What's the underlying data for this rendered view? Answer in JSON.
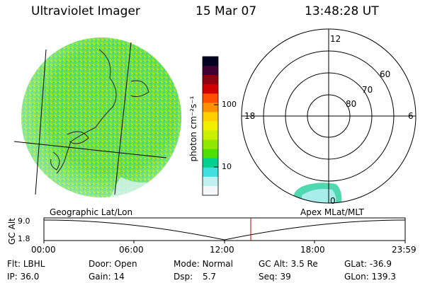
{
  "header": {
    "title": "Ultraviolet Imager",
    "date": "15 Mar 07",
    "time": "13:48:28 UT"
  },
  "colorbar": {
    "unit_label": "photon cm⁻²s⁻¹",
    "tick_labels": [
      "100",
      "10"
    ],
    "colors": [
      "#000020",
      "#400030",
      "#900010",
      "#d00000",
      "#ff5000",
      "#ff9000",
      "#ffd000",
      "#f0f000",
      "#c8f000",
      "#90e800",
      "#50e000",
      "#00d090",
      "#40e0e0",
      "#c0f0f0",
      "#f4f8f8"
    ]
  },
  "polar_plot": {
    "mlt_labels": {
      "top": "12",
      "left": "18",
      "right": "6",
      "bottom": "0"
    },
    "lat_labels": [
      "60",
      "70",
      "80"
    ]
  },
  "panel_labels": {
    "left": "Geographic Lat/Lon",
    "right": "Apex MLat/MLT"
  },
  "timeline": {
    "ylabel": "GC Alt",
    "ytick_top": "9.0",
    "ytick_bottom": "1.8",
    "xticks": [
      "00:00",
      "06:00",
      "12:00",
      "18:00",
      "23:59"
    ],
    "current_color": "#cc0000"
  },
  "status": {
    "filter": {
      "label": "Flt:",
      "value": "LBHL"
    },
    "ip": {
      "label": "IP:",
      "value": "36.0"
    },
    "door": {
      "label": "Door:",
      "value": "Open"
    },
    "gain": {
      "label": "Gain:",
      "value": "14"
    },
    "mode": {
      "label": "Mode:",
      "value": "Normal"
    },
    "dsp": {
      "label": "Dsp:",
      "value": "5.7"
    },
    "gc_alt": {
      "label": "GC Alt:",
      "value": "3.5 Re"
    },
    "seq": {
      "label": "Seq:",
      "value": "39"
    },
    "glat": {
      "label": "GLat:",
      "value": "-36.9"
    },
    "glon": {
      "label": "GLon:",
      "value": "139.3"
    }
  }
}
